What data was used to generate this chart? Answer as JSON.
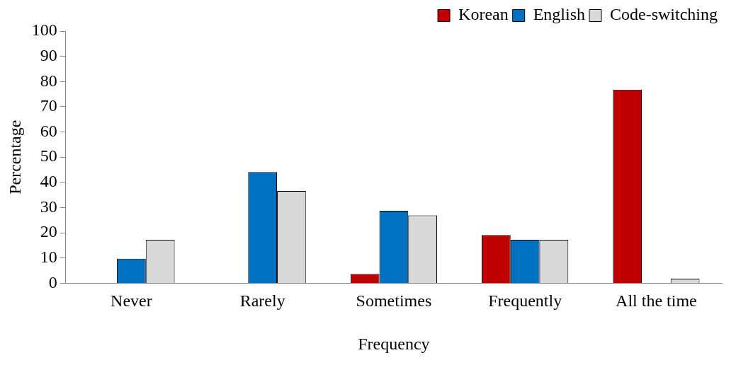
{
  "chart_data": {
    "type": "bar",
    "xlabel": "Frequency",
    "ylabel": "Percentage",
    "categories": [
      "Never",
      "Rarely",
      "Sometimes",
      "Frequently",
      "All the time"
    ],
    "series": [
      {
        "name": "Korean",
        "color": "#c00000",
        "values": [
          0,
          0,
          3.7,
          19.1,
          76.8
        ]
      },
      {
        "name": "English",
        "color": "#0070c0",
        "values": [
          9.7,
          44.1,
          28.7,
          17.2,
          0
        ]
      },
      {
        "name": "Code-switching",
        "color": "#d9d9d9",
        "values": [
          17.2,
          36.6,
          26.9,
          17.2,
          1.8
        ]
      }
    ],
    "ylim": [
      0,
      100
    ],
    "yticks": [
      0,
      10,
      20,
      30,
      40,
      50,
      60,
      70,
      80,
      90,
      100
    ],
    "grid": false,
    "legend": "top right"
  }
}
